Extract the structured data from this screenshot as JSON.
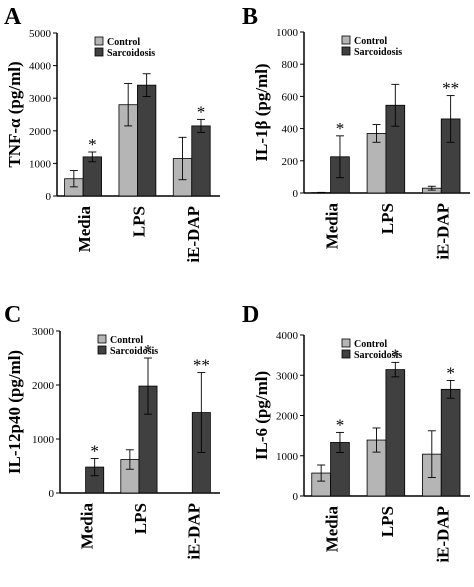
{
  "colors": {
    "control": "#b5b5b5",
    "sarcoidosis": "#404040",
    "axis": "#000000"
  },
  "chart_data": [
    {
      "type": "bar",
      "panel": "A",
      "ylabel": "TNF-α (pg/ml)",
      "ylim": [
        0,
        5000
      ],
      "yticks": [
        0,
        1000,
        2000,
        3000,
        4000,
        5000
      ],
      "categories": [
        "Media",
        "LPS",
        "iE-DAP"
      ],
      "legend": {
        "placement": "top-left",
        "entries": [
          "Control",
          "Sarcoidosis"
        ]
      },
      "series": [
        {
          "name": "Control",
          "values": [
            530,
            2800,
            1150
          ],
          "errors": [
            250,
            650,
            650
          ]
        },
        {
          "name": "Sarcoidosis",
          "values": [
            1200,
            3400,
            2150
          ],
          "errors": [
            150,
            350,
            200
          ]
        }
      ],
      "annotations": [
        "*",
        "",
        "*"
      ]
    },
    {
      "type": "bar",
      "panel": "B",
      "ylabel": "IL-1β (pg/ml)",
      "ylim": [
        0,
        1000
      ],
      "yticks": [
        0,
        200,
        400,
        600,
        800,
        1000
      ],
      "categories": [
        "Media",
        "LPS",
        "iE-DAP"
      ],
      "legend": {
        "placement": "top-left",
        "entries": [
          "Control",
          "Sarcoidosis"
        ]
      },
      "series": [
        {
          "name": "Control",
          "values": [
            2,
            370,
            30
          ],
          "errors": [
            2,
            55,
            12
          ]
        },
        {
          "name": "Sarcoidosis",
          "values": [
            225,
            545,
            460
          ],
          "errors": [
            130,
            130,
            145
          ]
        }
      ],
      "annotations": [
        "*",
        "",
        "**"
      ]
    },
    {
      "type": "bar",
      "panel": "C",
      "ylabel": "IL-12p40 (pg/ml)",
      "ylim": [
        0,
        3000
      ],
      "yticks": [
        0,
        1000,
        2000,
        3000
      ],
      "categories": [
        "Media",
        "LPS",
        "iE-DAP"
      ],
      "legend": {
        "placement": "top-left",
        "entries": [
          "Control",
          "Sarcoidosis"
        ]
      },
      "series": [
        {
          "name": "Control",
          "values": [
            0,
            620,
            0
          ],
          "errors": [
            0,
            180,
            0
          ]
        },
        {
          "name": "Sarcoidosis",
          "values": [
            480,
            1980,
            1490
          ],
          "errors": [
            160,
            520,
            740
          ]
        }
      ],
      "annotations": [
        "*",
        "*",
        "**"
      ]
    },
    {
      "type": "bar",
      "panel": "D",
      "ylabel": "IL-6 (pg/ml)",
      "ylim": [
        0,
        4000
      ],
      "yticks": [
        0,
        1000,
        2000,
        3000,
        4000
      ],
      "categories": [
        "Media",
        "LPS",
        "iE-DAP"
      ],
      "legend": {
        "placement": "top-left",
        "entries": [
          "Control",
          "Sarcoidosis"
        ]
      },
      "series": [
        {
          "name": "Control",
          "values": [
            570,
            1390,
            1040
          ],
          "errors": [
            200,
            300,
            580
          ]
        },
        {
          "name": "Sarcoidosis",
          "values": [
            1330,
            3140,
            2650
          ],
          "errors": [
            250,
            180,
            220
          ]
        }
      ],
      "annotations": [
        "*",
        "*",
        "*"
      ]
    }
  ]
}
